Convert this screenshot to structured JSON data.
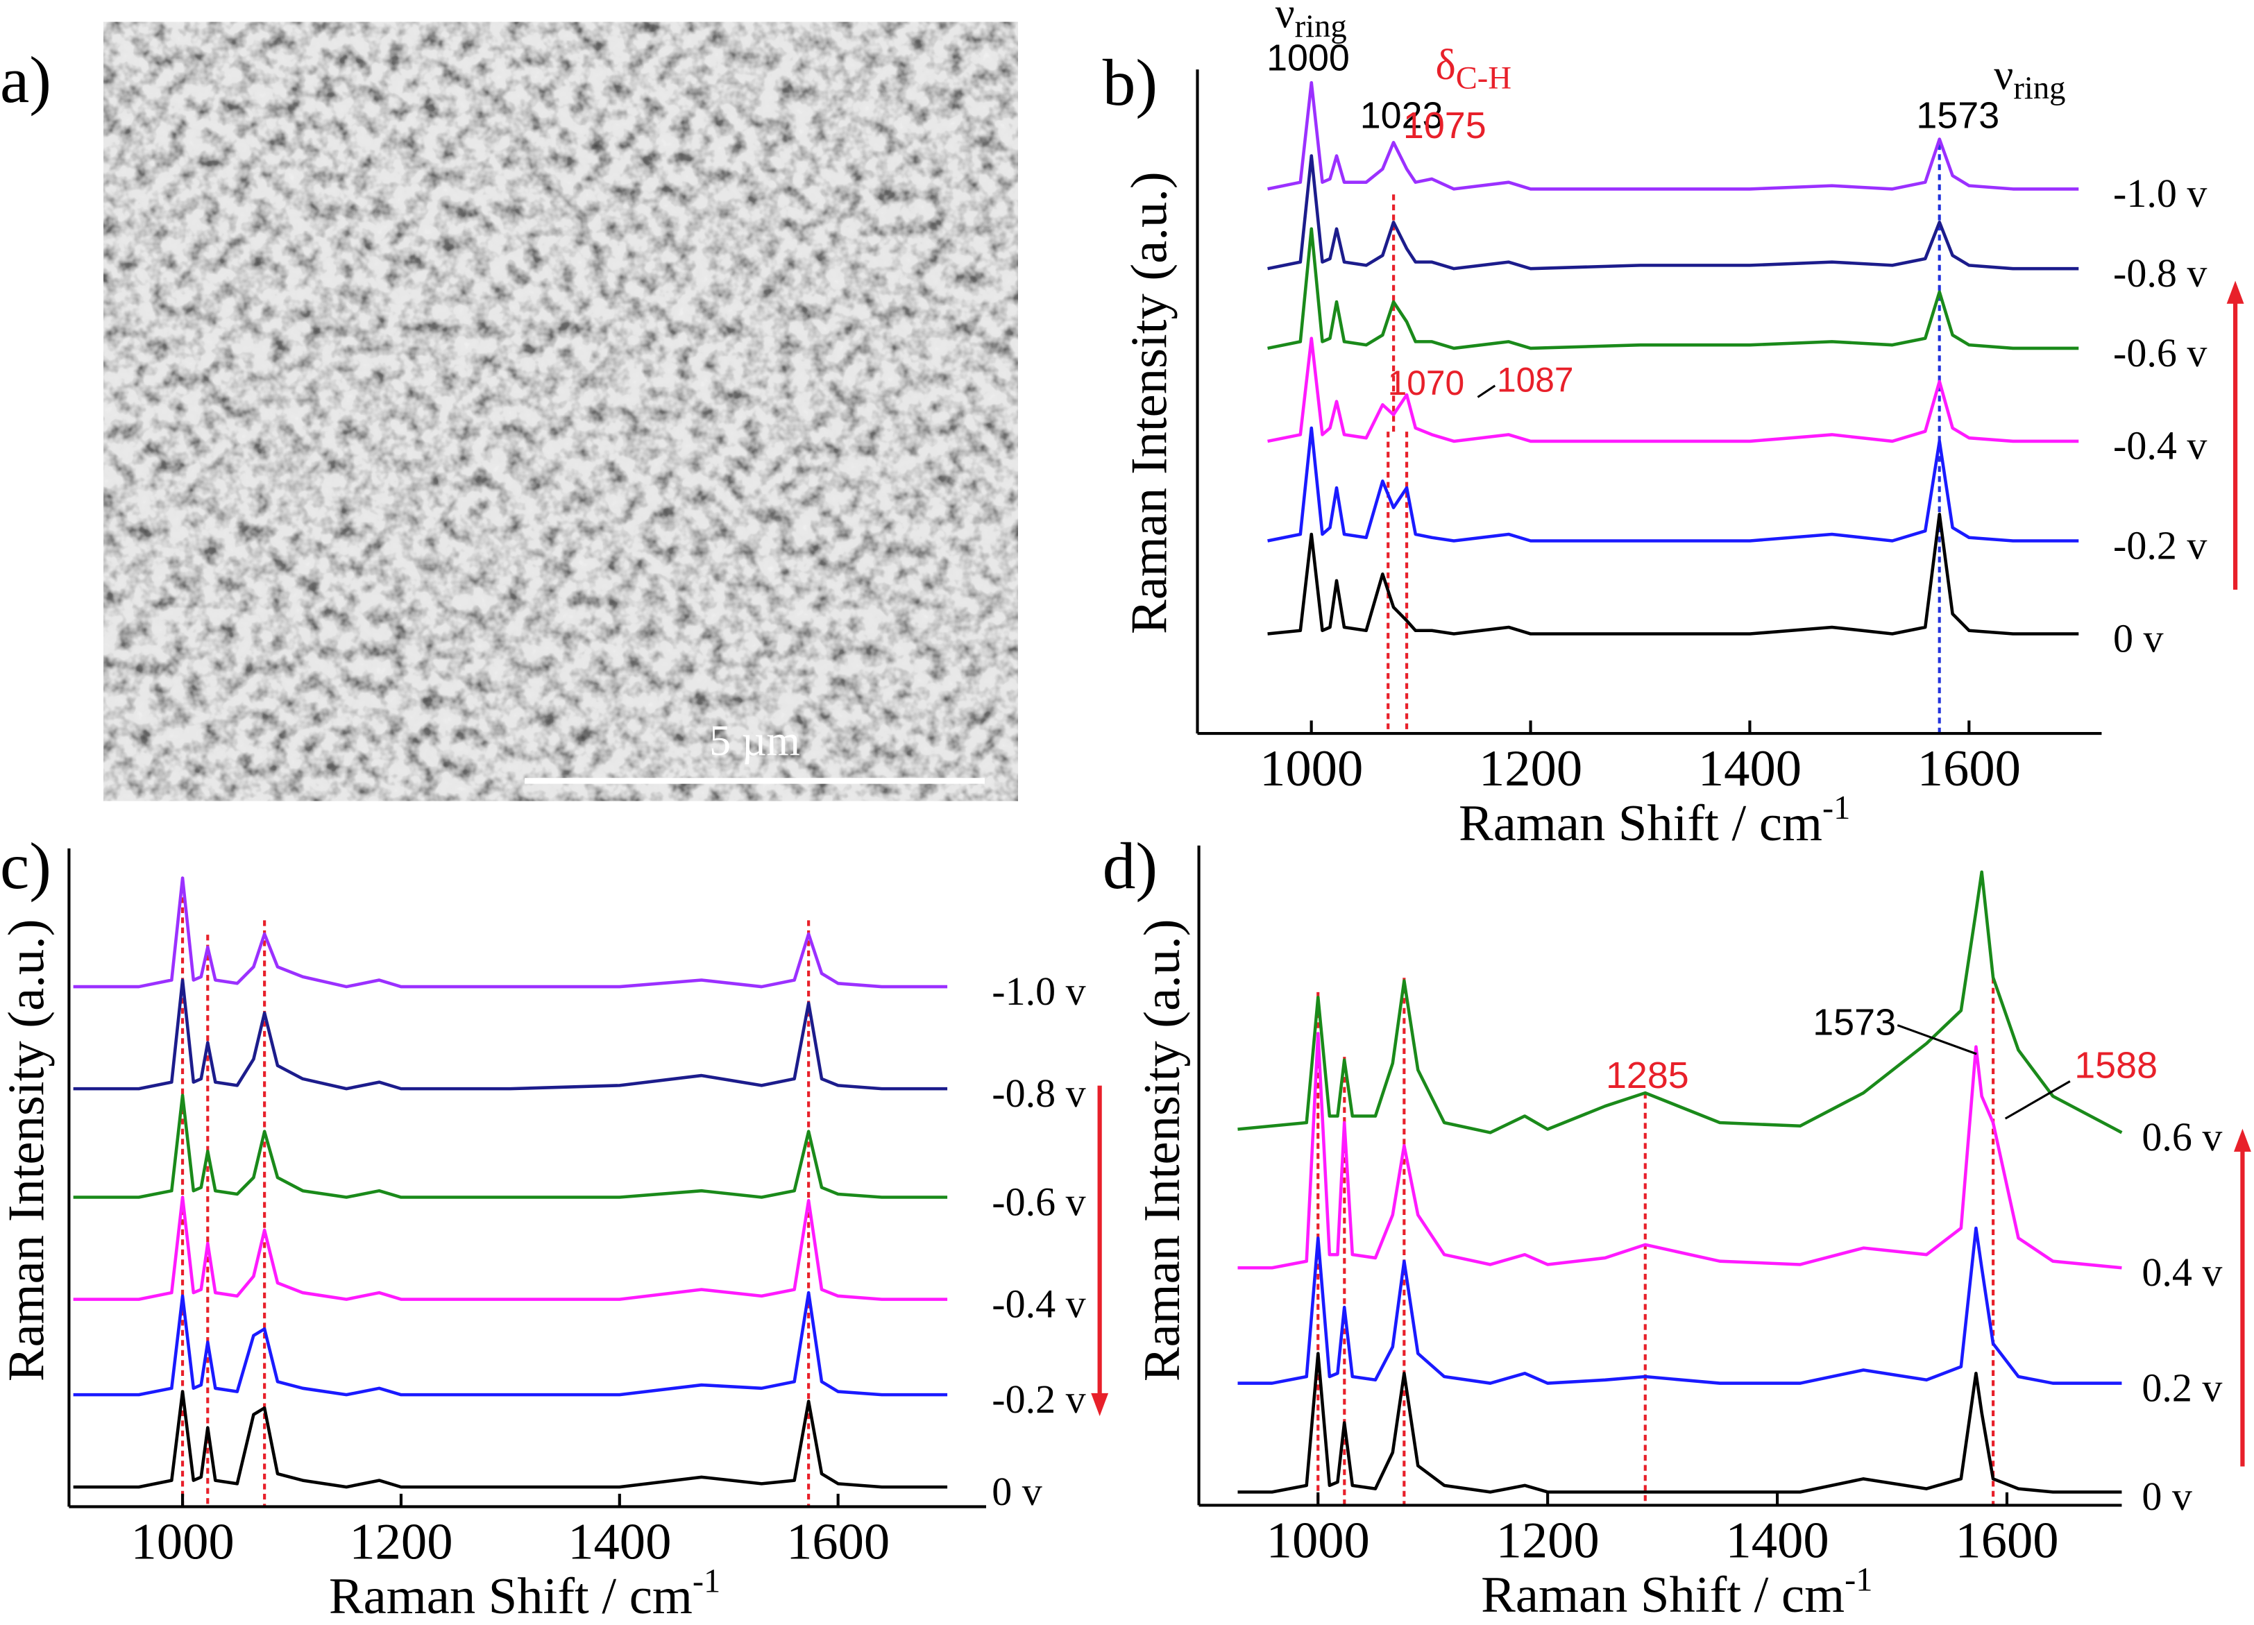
{
  "image_panel": {
    "panel_label": "a)",
    "scale_bar_label": "5 µm"
  },
  "chart_data": [
    {
      "type": "line",
      "panel_label": "b)",
      "x_label": {
        "text": "Raman Shift / cm",
        "sup": "-1"
      },
      "y_label": "Raman Intensity (a.u.)",
      "xlim": [
        900,
        1700
      ],
      "xticks": [
        1000,
        1200,
        1400,
        1600
      ],
      "ylim": [
        0,
        100
      ],
      "x": [
        960,
        990,
        1000,
        1010,
        1017,
        1023,
        1030,
        1050,
        1065,
        1075,
        1087,
        1095,
        1110,
        1130,
        1180,
        1200,
        1300,
        1400,
        1475,
        1530,
        1560,
        1573,
        1585,
        1600,
        1640,
        1700
      ],
      "series": [
        {
          "name": "-1.0 v",
          "color": "#9b30ff",
          "values": [
            82,
            83,
            98,
            83,
            83.5,
            87,
            83,
            83,
            85,
            89,
            85,
            83,
            83.5,
            82,
            83,
            82,
            82,
            82,
            82.5,
            82,
            83,
            89.5,
            84,
            82.5,
            82,
            82
          ]
        },
        {
          "name": "-0.8 v",
          "color": "#1c1c8c",
          "values": [
            70,
            71,
            87,
            71,
            71.5,
            76,
            71,
            70.5,
            72,
            77,
            73,
            71,
            71,
            70,
            71,
            70,
            70.5,
            70.5,
            71,
            70.5,
            71.5,
            77,
            72,
            70.5,
            70,
            70
          ]
        },
        {
          "name": "-0.6 v",
          "color": "#1a8a1a",
          "values": [
            58,
            59,
            76,
            59,
            59.5,
            65,
            59,
            58.5,
            60,
            65,
            62,
            59,
            59,
            58,
            59,
            58,
            58.5,
            58.5,
            59,
            58.5,
            59.5,
            66.5,
            60,
            58.5,
            58,
            58
          ]
        },
        {
          "name": "-0.4 v",
          "color": "#ff1aff",
          "values": [
            44,
            45,
            59.5,
            45,
            46,
            50,
            45,
            44.5,
            49.5,
            48,
            51,
            46,
            45,
            44,
            45,
            44,
            44,
            44,
            45,
            44,
            45.5,
            53,
            46,
            44.5,
            44,
            44
          ]
        },
        {
          "name": "-0.2 v",
          "color": "#1a1aff",
          "values": [
            29,
            30,
            46,
            30,
            31,
            37,
            30,
            29.5,
            38,
            34,
            37,
            30,
            29.5,
            29,
            30,
            29,
            29,
            29,
            30,
            29,
            30.5,
            44,
            31,
            29.5,
            29,
            29
          ]
        },
        {
          "name": "0 v",
          "color": "#000000",
          "values": [
            15,
            15.5,
            30,
            15.5,
            16,
            23,
            16,
            15.5,
            24,
            19,
            17,
            15.5,
            15.5,
            15,
            16,
            15,
            15,
            15,
            16,
            15,
            16,
            33,
            18,
            15.5,
            15,
            15
          ]
        }
      ],
      "ref_lines": [
        {
          "x": 1075,
          "color": "#e8202a"
        },
        {
          "x": 1070,
          "color": "#e8202a"
        },
        {
          "x": 1087,
          "color": "#e8202a"
        },
        {
          "x": 1573,
          "color": "#2233dd"
        }
      ],
      "annotations": [
        {
          "text": "ν",
          "sub": "ring",
          "color": "#000000"
        },
        {
          "text": "1000",
          "color": "#000000"
        },
        {
          "text": "1023",
          "color": "#000000"
        },
        {
          "text": "1075",
          "color": "#e8202a"
        },
        {
          "text": "δ",
          "sub": "C-H",
          "color": "#e8202a"
        },
        {
          "text": "1573",
          "color": "#000000"
        },
        {
          "text": "ν",
          "sub": "ring",
          "color": "#000000"
        },
        {
          "text": "1070",
          "color": "#e8202a"
        },
        {
          "text": "1087",
          "color": "#e8202a"
        }
      ]
    },
    {
      "type": "line",
      "panel_label": "c)",
      "x_label": {
        "text": "Raman Shift / cm",
        "sup": "-1"
      },
      "y_label": "Raman Intensity (a.u.)",
      "xlim": [
        900,
        1700
      ],
      "xticks": [
        1000,
        1200,
        1400,
        1600
      ],
      "ylim": [
        0,
        100
      ],
      "x": [
        900,
        960,
        990,
        1000,
        1010,
        1017,
        1023,
        1030,
        1050,
        1065,
        1075,
        1087,
        1110,
        1150,
        1180,
        1200,
        1300,
        1400,
        1475,
        1530,
        1560,
        1573,
        1585,
        1600,
        1640,
        1700
      ],
      "series": [
        {
          "name": "-1.0 v",
          "color": "#9b30ff",
          "values": [
            79,
            79,
            80,
            95.5,
            80,
            80.5,
            85,
            80,
            79.5,
            82,
            87,
            82,
            80.5,
            79,
            80,
            79,
            79,
            79,
            80,
            79,
            80,
            87,
            81,
            79.5,
            79,
            79
          ]
        },
        {
          "name": "-0.8 v",
          "color": "#1c1c8c",
          "values": [
            63.5,
            63.5,
            64.5,
            80,
            64.5,
            65,
            70.5,
            64.5,
            64,
            68,
            75,
            67,
            65,
            63.5,
            64.5,
            63.5,
            63.5,
            64,
            65.5,
            64,
            65,
            76.5,
            65,
            64,
            63.5,
            63.5
          ]
        },
        {
          "name": "-0.6 v",
          "color": "#1a8a1a",
          "values": [
            47,
            47,
            48,
            62.5,
            48,
            48.5,
            54,
            48,
            47.5,
            50,
            57,
            50,
            48,
            47,
            48,
            47,
            47,
            47,
            48,
            47,
            48,
            57,
            48.5,
            47.5,
            47,
            47
          ]
        },
        {
          "name": "-0.4 v",
          "color": "#ff1aff",
          "values": [
            31.5,
            31.5,
            32.5,
            47,
            32.5,
            33,
            40,
            32.5,
            32,
            35,
            42,
            34,
            32.5,
            31.5,
            32.5,
            31.5,
            31.5,
            31.5,
            33,
            32,
            33,
            46.5,
            33,
            32,
            31.5,
            31.5
          ]
        },
        {
          "name": "-0.2 v",
          "color": "#1a1aff",
          "values": [
            17,
            17,
            18,
            32,
            18,
            18.5,
            25,
            18,
            17.5,
            26,
            27,
            19,
            18,
            17,
            18,
            17,
            17,
            17,
            18.5,
            18,
            19,
            32.5,
            19,
            17.5,
            17,
            17
          ]
        },
        {
          "name": "0 v",
          "color": "#000000",
          "values": [
            3,
            3,
            4,
            17.5,
            4,
            4.5,
            12,
            4,
            3.5,
            14,
            15,
            5,
            4,
            3,
            4,
            3,
            3,
            3,
            4.5,
            3.5,
            4,
            16,
            5,
            3.5,
            3,
            3
          ]
        }
      ],
      "ref_lines": [
        {
          "x": 1000,
          "color": "#e8202a"
        },
        {
          "x": 1023,
          "color": "#e8202a"
        },
        {
          "x": 1075,
          "color": "#e8202a"
        },
        {
          "x": 1573,
          "color": "#e8202a"
        }
      ],
      "annotations": []
    },
    {
      "type": "line",
      "panel_label": "d)",
      "x_label": {
        "text": "Raman Shift / cm",
        "sup": "-1"
      },
      "y_label": "Raman Intensity (a.u.)",
      "xlim": [
        900,
        1700
      ],
      "xticks": [
        1000,
        1200,
        1400,
        1600
      ],
      "ylim": [
        0,
        100
      ],
      "x": [
        930,
        960,
        990,
        1000,
        1010,
        1017,
        1023,
        1030,
        1050,
        1065,
        1075,
        1087,
        1110,
        1150,
        1180,
        1200,
        1250,
        1285,
        1350,
        1420,
        1475,
        1530,
        1560,
        1573,
        1578,
        1588,
        1610,
        1640,
        1700
      ],
      "series": [
        {
          "name": "0.6 v",
          "color": "#1a8a1a",
          "values": [
            57,
            57.5,
            58,
            77,
            59,
            59,
            67.5,
            59,
            59,
            67,
            79.5,
            66,
            58,
            56.5,
            59,
            57,
            60.5,
            62.5,
            58,
            57.5,
            62.5,
            70,
            75,
            90,
            96,
            80,
            69,
            62,
            56.5
          ]
        },
        {
          "name": "0.4 v",
          "color": "#ff1aff",
          "values": [
            36,
            36,
            37,
            71.5,
            38,
            38,
            58,
            38,
            37.5,
            44,
            54.5,
            44,
            38,
            36.5,
            38,
            36.5,
            37.5,
            39.5,
            37,
            36.5,
            39,
            38,
            42,
            69.5,
            62,
            58,
            40.5,
            37,
            36
          ]
        },
        {
          "name": "0.2 v",
          "color": "#1a1aff",
          "values": [
            18.5,
            18.5,
            19.5,
            40.5,
            19.5,
            20,
            30,
            19.5,
            19,
            24,
            37,
            23,
            19.5,
            18.5,
            20,
            18.5,
            19,
            19.5,
            18.5,
            18.5,
            20.5,
            19,
            21,
            42,
            36,
            24.5,
            19.5,
            18.5,
            18.5
          ]
        },
        {
          "name": "0 v",
          "color": "#000000",
          "values": [
            2,
            2,
            3,
            23,
            3,
            3.5,
            12.5,
            3,
            2.5,
            8,
            20,
            6,
            3,
            2,
            3,
            2,
            2,
            2,
            2,
            2,
            4,
            2.5,
            4,
            20,
            14,
            4,
            2.5,
            2,
            2
          ]
        }
      ],
      "ref_lines": [
        {
          "x": 1000,
          "color": "#e8202a"
        },
        {
          "x": 1023,
          "color": "#e8202a"
        },
        {
          "x": 1075,
          "color": "#e8202a"
        },
        {
          "x": 1285,
          "color": "#e8202a"
        },
        {
          "x": 1588,
          "color": "#e8202a"
        }
      ],
      "annotations": [
        {
          "text": "1285",
          "color": "#e8202a"
        },
        {
          "text": "1573",
          "color": "#000000"
        },
        {
          "text": "1588",
          "color": "#e8202a"
        }
      ]
    }
  ]
}
